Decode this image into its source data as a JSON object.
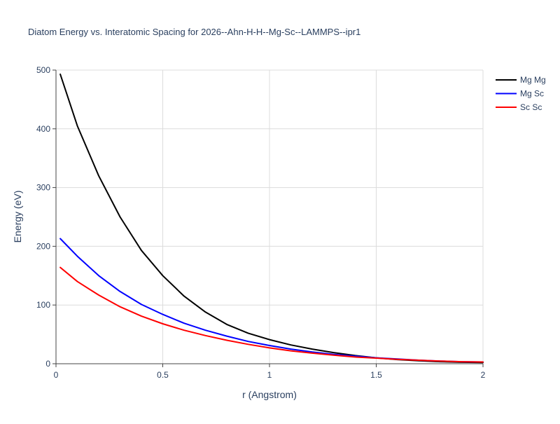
{
  "chart_data": {
    "type": "line",
    "title": "Diatom Energy vs. Interatomic Spacing for 2026--Ahn-H-H--Mg-Sc--LAMMPS--ipr1",
    "xlabel": "r (Angstrom)",
    "ylabel": "Energy (eV)",
    "xlim": [
      0,
      2
    ],
    "ylim": [
      0,
      500
    ],
    "x_ticks": [
      0,
      0.5,
      1,
      1.5,
      2
    ],
    "x_tick_labels": [
      "0",
      "0.5",
      "1",
      "1.5",
      "2"
    ],
    "y_ticks": [
      0,
      100,
      200,
      300,
      400,
      500
    ],
    "y_tick_labels": [
      "0",
      "100",
      "200",
      "300",
      "400",
      "500"
    ],
    "grid": true,
    "legend_position": "top-right",
    "x": [
      0.02,
      0.1,
      0.2,
      0.3,
      0.4,
      0.5,
      0.6,
      0.7,
      0.8,
      0.9,
      1.0,
      1.1,
      1.2,
      1.3,
      1.4,
      1.5,
      1.6,
      1.7,
      1.8,
      1.9,
      2.0
    ],
    "series": [
      {
        "name": "Mg Mg",
        "color": "#000000",
        "values": [
          493,
          405,
          320,
          250,
          193,
          150,
          115,
          88,
          67,
          52,
          41,
          32,
          25,
          19,
          14,
          10,
          7,
          5,
          3.5,
          2.5,
          2
        ]
      },
      {
        "name": "Mg Sc",
        "color": "#0000ff",
        "values": [
          213,
          183,
          150,
          123,
          101,
          84,
          69,
          57,
          47,
          38,
          31,
          25,
          20,
          16,
          13,
          10,
          8,
          6,
          4.5,
          3.5,
          3
        ]
      },
      {
        "name": "Sc Sc",
        "color": "#ff0000",
        "values": [
          164,
          140,
          117,
          97,
          81,
          68,
          57,
          48,
          40,
          33,
          27,
          22,
          18,
          14.5,
          11.5,
          9.5,
          7.5,
          6,
          4.5,
          3.5,
          3
        ]
      }
    ]
  }
}
